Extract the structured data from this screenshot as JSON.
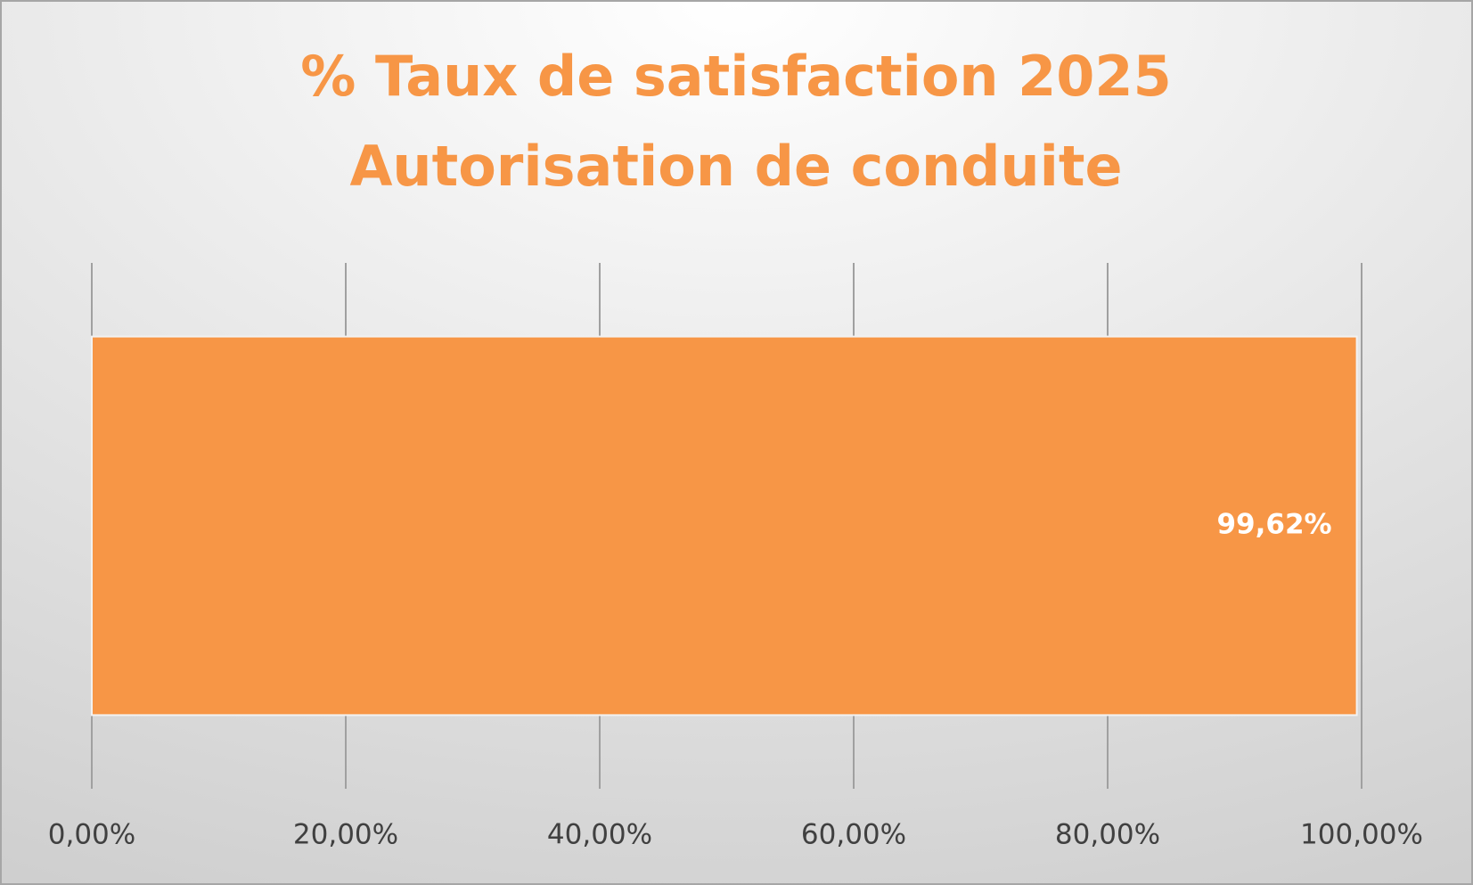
{
  "chart_data": {
    "type": "hbar",
    "title": [
      "% Taux de satisfaction 2025",
      "Autorisation de conduite"
    ],
    "categories": [
      null
    ],
    "values": [
      99.62
    ],
    "value_labels": [
      "99,62%"
    ],
    "color": "#f79646",
    "xlim": [
      0,
      100
    ],
    "xticks": [
      {
        "value": 0,
        "label": "0,00%"
      },
      {
        "value": 20,
        "label": "20,00%"
      },
      {
        "value": 40,
        "label": "40,00%"
      },
      {
        "value": 60,
        "label": "60,00%"
      },
      {
        "value": 80,
        "label": "80,00%"
      },
      {
        "value": 100,
        "label": "100,00%"
      }
    ],
    "grid": true
  }
}
